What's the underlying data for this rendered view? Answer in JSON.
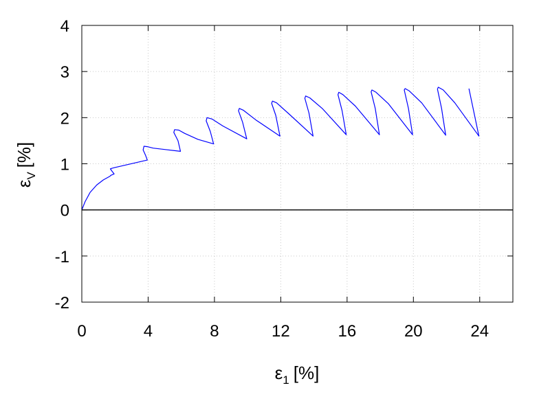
{
  "chart_data": {
    "type": "line",
    "xlabel": {
      "symbol": "ε",
      "subscript": "1",
      "unit": "[%]"
    },
    "ylabel": {
      "symbol": "ε",
      "subscript": "V",
      "unit": "[%]"
    },
    "xlim": [
      0,
      26
    ],
    "ylim": [
      -2,
      4
    ],
    "xticks": [
      0,
      4,
      8,
      12,
      16,
      20,
      24
    ],
    "yticks": [
      -2,
      -1,
      0,
      1,
      2,
      3,
      4
    ],
    "xtick_labels": [
      "0",
      "4",
      "8",
      "12",
      "16",
      "20",
      "24"
    ],
    "ytick_labels": [
      "-2",
      "-1",
      "0",
      "1",
      "2",
      "3",
      "4"
    ],
    "grid": true,
    "reference_line_y": 0,
    "series": [
      {
        "color": "#0000ff",
        "x": [
          0,
          0.2,
          0.5,
          0.9,
          1.3,
          1.7,
          1.75,
          1.95,
          1.8,
          1.72,
          1.8,
          2.0,
          3.95,
          3.85,
          3.7,
          3.75,
          3.95,
          4.3,
          5.0,
          5.95,
          5.8,
          5.55,
          5.6,
          5.85,
          6.2,
          7.0,
          7.95,
          7.75,
          7.5,
          7.55,
          7.85,
          8.5,
          9.95,
          9.7,
          9.45,
          9.5,
          9.75,
          10.5,
          11.95,
          11.7,
          11.45,
          11.5,
          11.75,
          12.5,
          13.95,
          13.7,
          13.45,
          13.5,
          13.75,
          14.5,
          15.95,
          15.7,
          15.45,
          15.5,
          15.75,
          16.5,
          17.95,
          17.7,
          17.45,
          17.5,
          17.75,
          18.5,
          19.95,
          19.7,
          19.45,
          19.5,
          19.75,
          20.5,
          21.95,
          21.7,
          21.45,
          21.5,
          21.8,
          22.5,
          23.95,
          23.35
        ],
        "y": [
          0,
          0.18,
          0.38,
          0.54,
          0.65,
          0.73,
          0.75,
          0.78,
          0.85,
          0.89,
          0.9,
          0.92,
          1.08,
          1.18,
          1.3,
          1.38,
          1.37,
          1.34,
          1.31,
          1.27,
          1.5,
          1.68,
          1.74,
          1.73,
          1.66,
          1.53,
          1.43,
          1.7,
          1.93,
          2.0,
          1.97,
          1.82,
          1.54,
          1.9,
          2.15,
          2.2,
          2.16,
          1.95,
          1.6,
          2.05,
          2.31,
          2.36,
          2.32,
          2.08,
          1.6,
          2.1,
          2.42,
          2.47,
          2.43,
          2.2,
          1.63,
          2.15,
          2.5,
          2.55,
          2.5,
          2.25,
          1.63,
          2.2,
          2.56,
          2.6,
          2.55,
          2.3,
          1.63,
          2.2,
          2.6,
          2.63,
          2.58,
          2.32,
          1.62,
          2.2,
          2.62,
          2.66,
          2.6,
          2.32,
          1.6,
          2.63
        ]
      }
    ]
  }
}
